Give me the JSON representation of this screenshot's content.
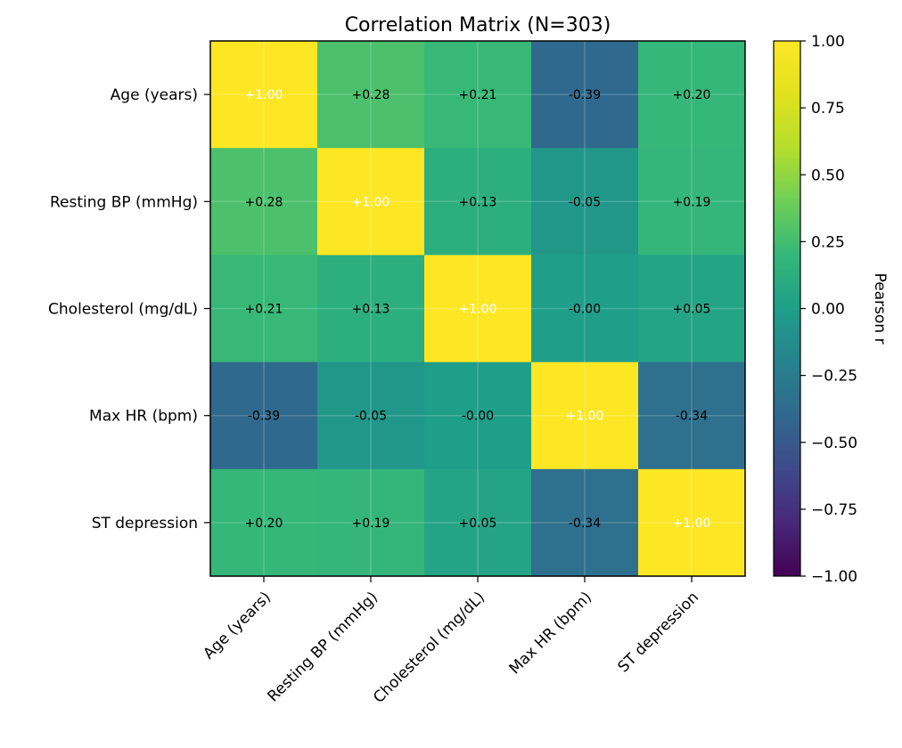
{
  "chart_data": {
    "type": "heatmap",
    "title": "Correlation Matrix (N=303)",
    "x_categories": [
      "Age (years)",
      "Resting BP (mmHg)",
      "Cholesterol (mg/dL)",
      "Max HR (bpm)",
      "ST depression"
    ],
    "y_categories": [
      "Age (years)",
      "Resting BP (mmHg)",
      "Cholesterol (mg/dL)",
      "Max HR (bpm)",
      "ST depression"
    ],
    "values": [
      [
        1.0,
        0.28,
        0.21,
        -0.39,
        0.2
      ],
      [
        0.28,
        1.0,
        0.13,
        -0.05,
        0.19
      ],
      [
        0.21,
        0.13,
        1.0,
        -0.0,
        0.05
      ],
      [
        -0.39,
        -0.05,
        -0.0,
        1.0,
        -0.34
      ],
      [
        0.2,
        0.19,
        0.05,
        -0.34,
        1.0
      ]
    ],
    "cell_labels": [
      [
        "+1.00",
        "+0.28",
        "+0.21",
        "-0.39",
        "+0.20"
      ],
      [
        "+0.28",
        "+1.00",
        "+0.13",
        "-0.05",
        "+0.19"
      ],
      [
        "+0.21",
        "+0.13",
        "+1.00",
        "-0.00",
        "+0.05"
      ],
      [
        "-0.39",
        "-0.05",
        "-0.00",
        "+1.00",
        "-0.34"
      ],
      [
        "+0.20",
        "+0.19",
        "+0.05",
        "-0.34",
        "+1.00"
      ]
    ],
    "colormap": "viridis",
    "vmin": -1.0,
    "vmax": 1.0,
    "colorbar": {
      "label": "Pearson r",
      "ticks": [
        1.0,
        0.75,
        0.5,
        0.25,
        0.0,
        -0.25,
        -0.5,
        -0.75,
        -1.0
      ],
      "tick_labels": [
        "1.00",
        "0.75",
        "0.50",
        "0.25",
        "0.00",
        "−0.25",
        "−0.50",
        "−0.75",
        "−1.00"
      ]
    },
    "grid": true,
    "xtick_rotation": "45deg"
  }
}
